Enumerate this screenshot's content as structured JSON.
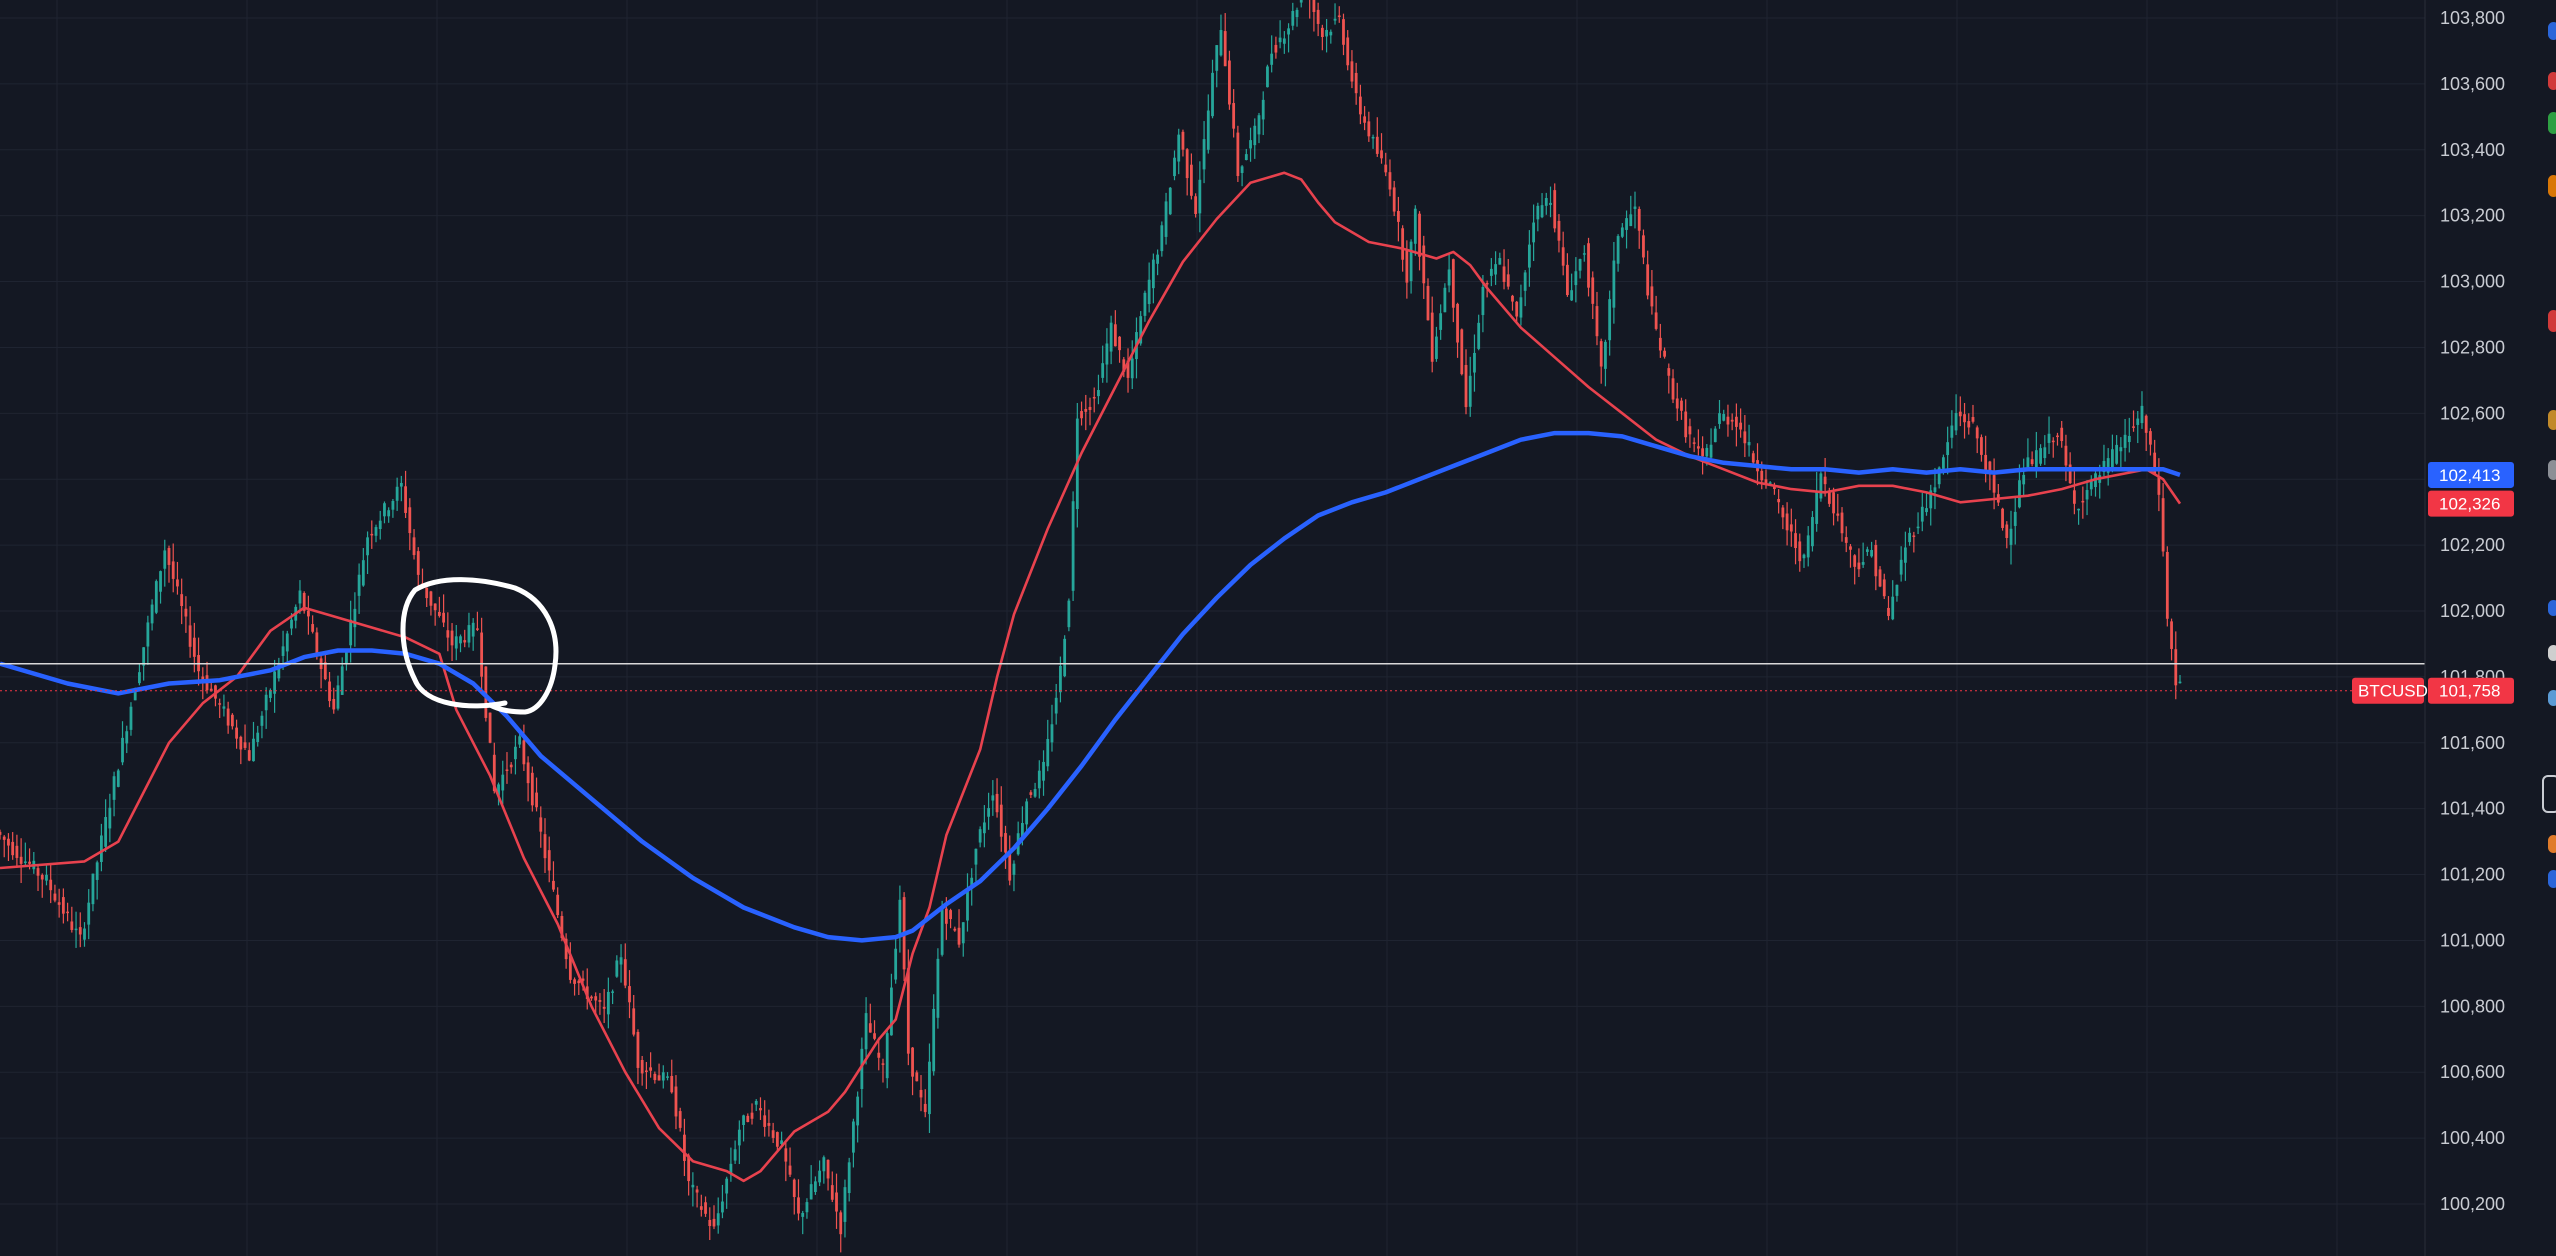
{
  "chart_data": {
    "type": "line",
    "symbol": "BTCUSD",
    "y_axis": {
      "ylim": [
        100100,
        103870
      ],
      "ticks": [
        100200,
        100400,
        100600,
        100800,
        101000,
        101200,
        101400,
        101600,
        101800,
        102000,
        102200,
        102400,
        102600,
        102800,
        103000,
        103200,
        103400,
        103600,
        103800
      ],
      "tick_labels": [
        "100,200",
        "100,400",
        "100,600",
        "100,800",
        "101,000",
        "101,200",
        "101,400",
        "101,600",
        "101,800",
        "102,000",
        "102,200",
        "102,400",
        "102,600",
        "102,800",
        "103,000",
        "103,200",
        "103,400",
        "103,600",
        "103,800"
      ]
    },
    "grid": true,
    "x_count": 180,
    "candle_path": [
      [
        0,
        101330
      ],
      [
        6,
        101180
      ],
      [
        10,
        101000
      ],
      [
        14,
        101480
      ],
      [
        20,
        102190
      ],
      [
        24,
        101820
      ],
      [
        30,
        101560
      ],
      [
        36,
        102050
      ],
      [
        40,
        101700
      ],
      [
        44,
        102230
      ],
      [
        48,
        102380
      ],
      [
        50,
        102100
      ],
      [
        54,
        101900
      ],
      [
        57,
        101950
      ],
      [
        59,
        101450
      ],
      [
        62,
        101600
      ],
      [
        64,
        101380
      ],
      [
        68,
        100900
      ],
      [
        72,
        100780
      ],
      [
        74,
        100960
      ],
      [
        76,
        100630
      ],
      [
        80,
        100560
      ],
      [
        82,
        100260
      ],
      [
        85,
        100120
      ],
      [
        88,
        100430
      ],
      [
        90,
        100500
      ],
      [
        93,
        100370
      ],
      [
        95,
        100160
      ],
      [
        98,
        100320
      ],
      [
        100,
        100130
      ],
      [
        103,
        100760
      ],
      [
        105,
        100600
      ],
      [
        107,
        101130
      ],
      [
        108,
        100660
      ],
      [
        110,
        100460
      ],
      [
        112,
        101100
      ],
      [
        114,
        101000
      ],
      [
        116,
        101280
      ],
      [
        118,
        101460
      ],
      [
        120,
        101200
      ],
      [
        122,
        101430
      ],
      [
        124,
        101520
      ],
      [
        126,
        101820
      ],
      [
        127,
        102050
      ],
      [
        128,
        102600
      ],
      [
        130,
        102640
      ],
      [
        132,
        102860
      ],
      [
        134,
        102700
      ],
      [
        136,
        102950
      ],
      [
        138,
        103150
      ],
      [
        140,
        103450
      ],
      [
        142,
        103220
      ],
      [
        144,
        103620
      ],
      [
        145,
        103780
      ],
      [
        147,
        103330
      ],
      [
        149,
        103450
      ],
      [
        151,
        103700
      ],
      [
        153,
        103780
      ],
      [
        155,
        103900
      ],
      [
        157,
        103750
      ],
      [
        159,
        103800
      ],
      [
        161,
        103550
      ],
      [
        163,
        103420
      ],
      [
        165,
        103300
      ],
      [
        167,
        103020
      ],
      [
        168,
        103200
      ],
      [
        170,
        102780
      ],
      [
        172,
        103050
      ],
      [
        174,
        102620
      ],
      [
        176,
        102980
      ],
      [
        178,
        103060
      ],
      [
        180,
        102880
      ],
      [
        182,
        103200
      ],
      [
        184,
        103260
      ],
      [
        186,
        102960
      ],
      [
        188,
        103100
      ],
      [
        190,
        102720
      ],
      [
        192,
        103150
      ],
      [
        194,
        103220
      ],
      [
        196,
        102900
      ],
      [
        198,
        102700
      ],
      [
        200,
        102550
      ],
      [
        202,
        102450
      ],
      [
        204,
        102590
      ],
      [
        206,
        102580
      ],
      [
        208,
        102460
      ],
      [
        210,
        102380
      ],
      [
        212,
        102250
      ],
      [
        214,
        102150
      ],
      [
        216,
        102420
      ],
      [
        218,
        102280
      ],
      [
        220,
        102140
      ],
      [
        222,
        102180
      ],
      [
        224,
        101980
      ],
      [
        226,
        102200
      ],
      [
        228,
        102300
      ],
      [
        230,
        102420
      ],
      [
        232,
        102600
      ],
      [
        234,
        102560
      ],
      [
        236,
        102400
      ],
      [
        238,
        102220
      ],
      [
        240,
        102430
      ],
      [
        242,
        102480
      ],
      [
        244,
        102550
      ],
      [
        246,
        102320
      ],
      [
        248,
        102380
      ],
      [
        250,
        102450
      ],
      [
        252,
        102520
      ],
      [
        254,
        102600
      ],
      [
        256,
        102360
      ],
      [
        257,
        101980
      ],
      [
        258,
        101780
      ]
    ],
    "wick_amplitude": 60,
    "series": [
      {
        "color": "#e8424e",
        "points": [
          [
            0,
            101220
          ],
          [
            10,
            101240
          ],
          [
            14,
            101300
          ],
          [
            20,
            101600
          ],
          [
            24,
            101720
          ],
          [
            28,
            101800
          ],
          [
            32,
            101940
          ],
          [
            36,
            102010
          ],
          [
            40,
            101980
          ],
          [
            44,
            101950
          ],
          [
            48,
            101920
          ],
          [
            52,
            101870
          ],
          [
            54,
            101700
          ],
          [
            58,
            101500
          ],
          [
            62,
            101250
          ],
          [
            66,
            101050
          ],
          [
            70,
            100800
          ],
          [
            74,
            100600
          ],
          [
            78,
            100430
          ],
          [
            82,
            100330
          ],
          [
            86,
            100300
          ],
          [
            88,
            100270
          ],
          [
            90,
            100300
          ],
          [
            94,
            100420
          ],
          [
            98,
            100480
          ],
          [
            100,
            100540
          ],
          [
            104,
            100700
          ],
          [
            106,
            100760
          ],
          [
            108,
            100960
          ],
          [
            110,
            101100
          ],
          [
            112,
            101320
          ],
          [
            116,
            101580
          ],
          [
            118,
            101800
          ],
          [
            120,
            101990
          ],
          [
            124,
            102250
          ],
          [
            128,
            102480
          ],
          [
            132,
            102680
          ],
          [
            136,
            102880
          ],
          [
            140,
            103060
          ],
          [
            144,
            103190
          ],
          [
            148,
            103300
          ],
          [
            152,
            103330
          ],
          [
            154,
            103310
          ],
          [
            156,
            103240
          ],
          [
            158,
            103180
          ],
          [
            160,
            103150
          ],
          [
            162,
            103120
          ],
          [
            166,
            103100
          ],
          [
            170,
            103070
          ],
          [
            172,
            103090
          ],
          [
            174,
            103050
          ],
          [
            176,
            102980
          ],
          [
            180,
            102860
          ],
          [
            184,
            102770
          ],
          [
            188,
            102680
          ],
          [
            192,
            102600
          ],
          [
            196,
            102520
          ],
          [
            200,
            102470
          ],
          [
            204,
            102430
          ],
          [
            208,
            102390
          ],
          [
            212,
            102370
          ],
          [
            216,
            102360
          ],
          [
            220,
            102380
          ],
          [
            224,
            102380
          ],
          [
            228,
            102360
          ],
          [
            232,
            102330
          ],
          [
            236,
            102340
          ],
          [
            240,
            102350
          ],
          [
            244,
            102370
          ],
          [
            248,
            102400
          ],
          [
            252,
            102420
          ],
          [
            254,
            102430
          ],
          [
            256,
            102400
          ],
          [
            258,
            102326
          ]
        ]
      },
      {
        "color": "#2962ff",
        "points": [
          [
            0,
            101840
          ],
          [
            8,
            101780
          ],
          [
            14,
            101750
          ],
          [
            20,
            101780
          ],
          [
            26,
            101790
          ],
          [
            32,
            101820
          ],
          [
            36,
            101860
          ],
          [
            40,
            101880
          ],
          [
            44,
            101880
          ],
          [
            48,
            101870
          ],
          [
            52,
            101840
          ],
          [
            56,
            101780
          ],
          [
            60,
            101680
          ],
          [
            64,
            101560
          ],
          [
            70,
            101430
          ],
          [
            76,
            101300
          ],
          [
            82,
            101190
          ],
          [
            88,
            101100
          ],
          [
            94,
            101040
          ],
          [
            98,
            101010
          ],
          [
            102,
            101000
          ],
          [
            106,
            101010
          ],
          [
            108,
            101030
          ],
          [
            112,
            101110
          ],
          [
            116,
            101180
          ],
          [
            120,
            101280
          ],
          [
            124,
            101400
          ],
          [
            128,
            101530
          ],
          [
            132,
            101670
          ],
          [
            136,
            101800
          ],
          [
            140,
            101930
          ],
          [
            144,
            102040
          ],
          [
            148,
            102140
          ],
          [
            152,
            102220
          ],
          [
            156,
            102290
          ],
          [
            160,
            102330
          ],
          [
            164,
            102360
          ],
          [
            168,
            102400
          ],
          [
            172,
            102440
          ],
          [
            176,
            102480
          ],
          [
            180,
            102520
          ],
          [
            184,
            102540
          ],
          [
            188,
            102540
          ],
          [
            192,
            102530
          ],
          [
            196,
            102500
          ],
          [
            200,
            102470
          ],
          [
            204,
            102450
          ],
          [
            208,
            102440
          ],
          [
            212,
            102430
          ],
          [
            216,
            102430
          ],
          [
            220,
            102420
          ],
          [
            224,
            102430
          ],
          [
            228,
            102420
          ],
          [
            232,
            102430
          ],
          [
            236,
            102420
          ],
          [
            240,
            102430
          ],
          [
            244,
            102430
          ],
          [
            248,
            102430
          ],
          [
            252,
            102430
          ],
          [
            256,
            102430
          ],
          [
            258,
            102413
          ]
        ]
      }
    ],
    "horizontal_line": 101840,
    "last_price": 101758,
    "price_tags": [
      {
        "value": 102413,
        "label": "102,413",
        "color": "#2962ff"
      },
      {
        "value": 102326,
        "label": "102,326",
        "color": "#f23645"
      },
      {
        "value": 101758,
        "label": "101,758",
        "color": "#f23645"
      }
    ],
    "colors": {
      "background": "#141823",
      "grid": "#1f2431",
      "up_candle": "#26a69a",
      "down_candle": "#ef5350",
      "axis_text": "#c9ccd3",
      "horizontal_line": "#d9d9d9",
      "annotation": "#ffffff"
    }
  }
}
